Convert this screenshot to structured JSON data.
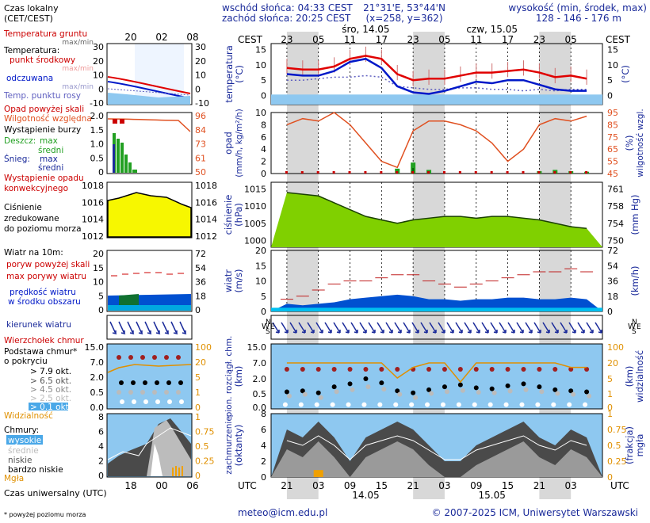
{
  "header": {
    "sunrise": "wschód słońca: 04:33 CEST",
    "sunset": "zachód słońca: 20:25 CEST",
    "coords": "21°31'E, 53°44'N",
    "grid": "(x=258, y=362)",
    "elev_title": "wysokość (min, środek, max)",
    "elev_values": "128 - 146 - 176 m"
  },
  "time": {
    "cest_label": "CEST",
    "utc_label": "UTC",
    "local_label": "Czas lokalny",
    "local_label2": "(CET/CEST)",
    "utc_footer": "Czas uniwersalny (UTC)",
    "top_ticks": [
      "23",
      "05",
      "11",
      "17",
      "23",
      "05",
      "11",
      "17",
      "23",
      "05"
    ],
    "bottom_ticks": [
      "21",
      "03",
      "09",
      "15",
      "21",
      "03",
      "09",
      "15",
      "21",
      "03"
    ],
    "day1": "śro, 14.05",
    "day2": "czw, 15.05",
    "date1": "14.05",
    "date2": "15.05",
    "legend_top_ticks": [
      "20",
      "02",
      "08"
    ],
    "legend_bottom_ticks": [
      "18",
      "00",
      "06"
    ]
  },
  "legend": {
    "t_soil": "Temperatura gruntu",
    "t_soil_sub": "max/min",
    "t_air": "Temperatura:",
    "t_mid": "punkt środkowy",
    "t_mid_sub": "max/min",
    "t_felt": "odczuwana",
    "t_felt_sub": "max/min",
    "t_dew": "Temp. punktu rosy",
    "rain_over": "Opad powyżej skali",
    "rh": "Wilgotność względna",
    "storm": "Wystąpienie burzy",
    "rain": "Deszcz:",
    "rain_max": "max",
    "rain_mean": "średni",
    "snow": "Śnieg:",
    "snow_max": "max",
    "snow_mean": "średni",
    "conv": "Wystąpienie opadu",
    "conv2": "konwekcyjnego",
    "pres1": "Ciśnienie",
    "pres2": "zredukowane",
    "pres3": "do poziomu morza",
    "wind_title": "Wiatr na 10m:",
    "gust_over": "poryw powyżej skali",
    "gust_max": "max porywy wiatru",
    "wind_mean": "prędkość wiatru",
    "wind_mean2": "w środku obszaru",
    "wind_dir": "kierunek wiatru",
    "peak": "Wierzchołek chmur",
    "base1": "Podstawa chmur*",
    "base2": "o pokryciu",
    "okt79": "> 7.9 okt.",
    "okt65": "> 6.5 okt.",
    "okt45": "> 4.5 okt.",
    "okt25": "> 2.5 okt.",
    "okt01": "> 0.1 okt.",
    "vis": "Widzialność",
    "clouds": "Chmury:",
    "c_high": "wysokie",
    "c_mid": "średnie",
    "c_low": "niskie",
    "c_vlow": "bardzo niskie",
    "fog": "Mgła",
    "footnote": "* powyżej poziomu morza"
  },
  "axes": {
    "temp_title": "temperatura",
    "temp_unit": "(°C)",
    "rain_title": "opad",
    "rain_unit": "(mm/h, kg/m²/h)",
    "rh_title": "wilgotność wzgl.",
    "rh_unit": "(%)",
    "pres_title": "ciśnienie",
    "pres_unit": "(hPa)",
    "pres_unit_r": "(mm Hg)",
    "wind_title": "wiatr",
    "wind_unit": "(m/s)",
    "wind_unit_r": "(km/h)",
    "cloud_title": "pion. rozciągł. chm.",
    "cloud_unit": "(km)",
    "vis_title": "widzialność",
    "vis_unit": "(km)",
    "cov_title": "zachmurzenie",
    "cov_unit": "(oktanty)",
    "fog_title": "mgła",
    "fog_unit": "(frakcja)",
    "temp_ticks": [
      "15",
      "10",
      "5",
      "0"
    ],
    "temp_ticks_r": [
      "15",
      "10",
      "5",
      "0"
    ],
    "rain_ticks": [
      "10",
      "8",
      "6",
      "4",
      "2",
      "0"
    ],
    "rh_ticks": [
      "95",
      "85",
      "75",
      "65",
      "55",
      "45"
    ],
    "pres_ticks": [
      "1015",
      "1010",
      "1005",
      "1000"
    ],
    "pres_ticks_r": [
      "761",
      "758",
      "754",
      "750"
    ],
    "wind_ticks": [
      "20",
      "15",
      "10",
      "5",
      "0"
    ],
    "wind_ticks_r": [
      "72",
      "54",
      "36",
      "18",
      "0"
    ],
    "cloud_ticks": [
      "15.0",
      "7.0",
      "2.0",
      "0.5",
      "0.0"
    ],
    "vis_ticks": [
      "100",
      "20",
      "5",
      "1",
      "0"
    ],
    "cov_ticks": [
      "8",
      "6",
      "4",
      "2",
      "0"
    ],
    "fog_ticks": [
      "1",
      "0.75",
      "0.5",
      "0.25",
      "0"
    ],
    "compass": [
      "N",
      "W",
      "S",
      "E"
    ]
  },
  "legend_axes": {
    "temp_l": [
      "30",
      "20",
      "10",
      "0",
      "-10"
    ],
    "temp_r": [
      "30",
      "20",
      "10",
      "0",
      "-10"
    ],
    "rain_l": [
      "2.0",
      "1.5",
      "1.0",
      "0.5",
      "0"
    ],
    "rh_r": [
      "96",
      "84",
      "73",
      "61",
      "50"
    ],
    "pres_l": [
      "1018",
      "1016",
      "1014",
      "1012"
    ],
    "pres_r": [
      "1018",
      "1016",
      "1014",
      "1012"
    ],
    "wind_l": [
      "20",
      "15",
      "10",
      "5",
      "0"
    ],
    "wind_r": [
      "72",
      "54",
      "36",
      "18",
      "0"
    ],
    "cloud_l": [
      "15.0",
      "7.0",
      "2.0",
      "0.5",
      "0.0"
    ],
    "vis_r": [
      "100",
      "20",
      "5",
      "1",
      "0"
    ],
    "cov_l": [
      "8",
      "6",
      "4",
      "2",
      "0"
    ],
    "fog_r": [
      "1",
      "0.75",
      "0.5",
      "0.25",
      "0"
    ]
  },
  "footer": {
    "email": "meteo@icm.edu.pl",
    "copyright": "© 2007-2025 ICM, Uniwersytet Warszawski"
  },
  "colors": {
    "temp_mid": "#e00000",
    "felt": "#0018c8",
    "dew": "#6060c0",
    "soil": "#a02020",
    "rain": "#22a022",
    "rh": "#e05020",
    "pressure": "#80d000",
    "wind": "#0050d0",
    "gust": "#c02020",
    "vis": "#e09000",
    "night": "#d8d8d8",
    "sky": "#8ec8f0"
  },
  "chart_data": {
    "type": "line",
    "time_utc_hours": [
      21,
      24,
      27,
      30,
      33,
      36,
      39,
      42,
      45,
      48,
      51,
      54,
      57,
      60,
      63,
      66,
      69,
      72,
      75,
      78
    ],
    "temperature": {
      "mid": [
        9,
        8.5,
        8.5,
        9.5,
        12,
        13,
        12,
        7,
        5,
        5.5,
        5.5,
        6.5,
        7.5,
        7.5,
        8,
        8.5,
        7.5,
        6,
        6.5,
        5.5
      ],
      "felt": [
        7,
        6.5,
        6.5,
        8,
        11,
        12,
        9,
        3,
        1,
        0.5,
        1.5,
        3,
        4.5,
        4,
        5,
        5,
        3.5,
        2,
        1.5,
        1.5
      ],
      "dew": [
        5,
        5,
        5.5,
        6,
        6,
        6.5,
        6,
        3,
        2.5,
        2,
        2,
        2.5,
        2.5,
        2,
        2,
        1.5,
        2,
        1.5,
        2,
        2
      ]
    },
    "rain_mm_h": {
      "max": [
        0,
        0,
        0,
        0,
        0,
        0,
        0,
        0.8,
        1.8,
        0.6,
        0,
        0,
        0,
        0,
        0,
        0,
        0.4,
        0.6,
        0.4,
        0.3
      ],
      "mean": [
        0,
        0,
        0,
        0,
        0,
        0,
        0,
        0.2,
        0.9,
        0.2,
        0,
        0,
        0,
        0,
        0,
        0,
        0.1,
        0.2,
        0.1,
        0.1
      ]
    },
    "humidity_pct": [
      85,
      90,
      88,
      95,
      85,
      70,
      55,
      50,
      80,
      88,
      88,
      85,
      80,
      70,
      55,
      65,
      85,
      90,
      88,
      92
    ],
    "pressure_hpa": [
      1014,
      1013.5,
      1013,
      1011,
      1009,
      1007,
      1006,
      1005,
      1006,
      1006.5,
      1007,
      1007,
      1006.5,
      1007,
      1007,
      1006.5,
      1006,
      1005,
      1004,
      1003.5
    ],
    "wind_m_s": {
      "mean": [
        2.5,
        2,
        2.5,
        3,
        4,
        4.5,
        5,
        5.5,
        5,
        4,
        4,
        3.5,
        4,
        4,
        4.5,
        4.5,
        4,
        4,
        4.5,
        4
      ],
      "gust": [
        4,
        5,
        7,
        9,
        10,
        10,
        11,
        12,
        12,
        10,
        9,
        8,
        9,
        10,
        11,
        12,
        13,
        13,
        14,
        13
      ]
    },
    "cloud_base_km": [
      0.7,
      0.8,
      0.6,
      1.2,
      1.5,
      2,
      1.6,
      0.8,
      0.6,
      0.9,
      1.2,
      1.4,
      1.1,
      1.0,
      1.3,
      1.5,
      1.2,
      0.9,
      0.8,
      0.7
    ],
    "visibility_km": [
      25,
      25,
      25,
      25,
      25,
      25,
      25,
      8,
      20,
      25,
      25,
      6,
      25,
      25,
      25,
      25,
      25,
      25,
      20,
      20
    ],
    "cloud_cover_okt": [
      6,
      5,
      7,
      5,
      2,
      5,
      6,
      7,
      6,
      4,
      2,
      2,
      4,
      5,
      6,
      7,
      5,
      4,
      6,
      5
    ],
    "fog_fraction": [
      0,
      0,
      0.05,
      0,
      0,
      0,
      0,
      0,
      0,
      0,
      0,
      0,
      0,
      0,
      0,
      0,
      0,
      0,
      0,
      0
    ]
  }
}
